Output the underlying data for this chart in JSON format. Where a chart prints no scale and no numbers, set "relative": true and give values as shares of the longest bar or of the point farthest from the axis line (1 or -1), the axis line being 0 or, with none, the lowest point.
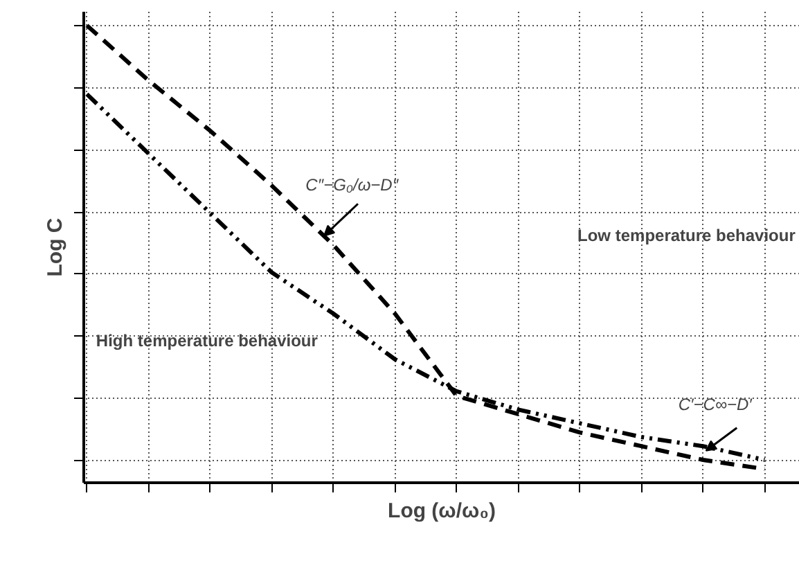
{
  "chart_data": {
    "type": "line",
    "relative": true,
    "xlabel": "Log (ω/ω₀)",
    "ylabel": "Log C",
    "categories": [
      null,
      null,
      null,
      null,
      null,
      null,
      null,
      null,
      null,
      null,
      null,
      null
    ],
    "series": [
      {
        "color": "#000000",
        "line_style": "dashed",
        "values": [
          1,
          0.88,
          0.77,
          0.65,
          0.52,
          0.37,
          0.19,
          0.15,
          0.11,
          0.08,
          0.05,
          0.03
        ]
      },
      {
        "color": "#000000",
        "line_style": "dashdotdot",
        "values": [
          0.85,
          0.72,
          0.59,
          0.46,
          0.37,
          0.27,
          0.2,
          0.16,
          0.13,
          0.1,
          0.08,
          0.05
        ]
      }
    ],
    "annotations": [
      "C″−G₀/ω−D″",
      "Low temperature behaviour",
      "High temperature behaviour",
      "C′−C∞−D′"
    ],
    "grid": true,
    "marker": "none"
  }
}
